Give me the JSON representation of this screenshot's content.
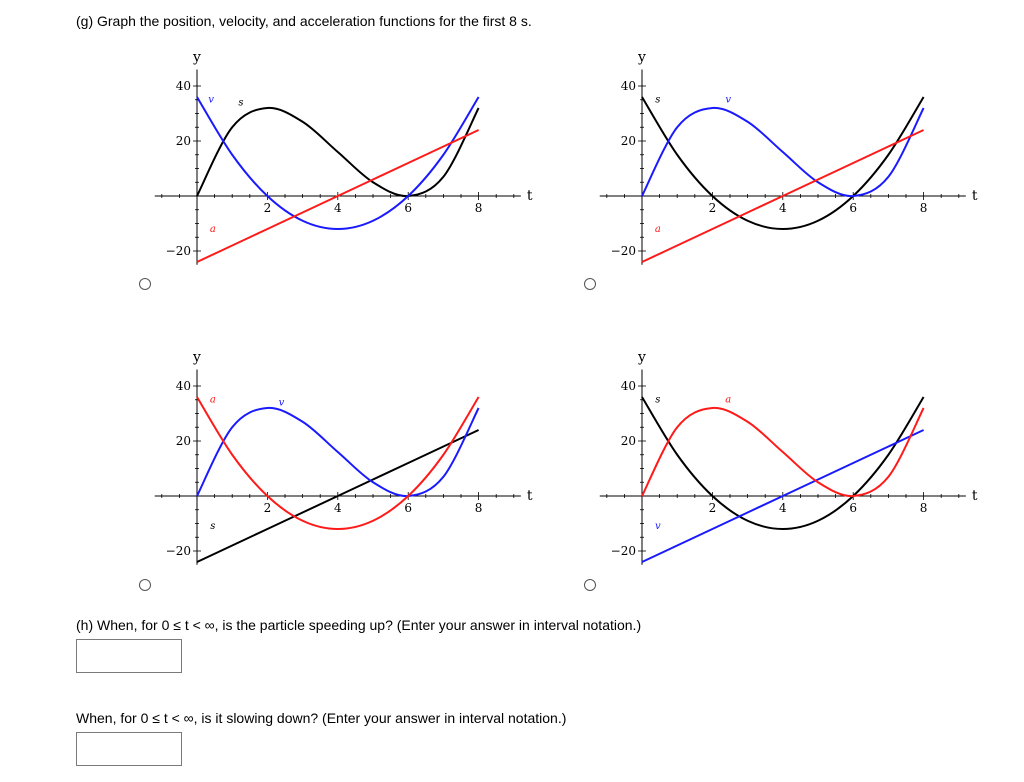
{
  "questions": {
    "g": "(g) Graph the position, velocity, and acceleration functions for the first 8 s.",
    "h": "(h) When, for  0 ≤ t < ∞,  is the particle speeding up? (Enter your answer in interval notation.)",
    "h2": "When, for  0 ≤ t < ∞,  is it slowing down? (Enter your answer in interval notation.)"
  },
  "answers": {
    "speeding_up": "",
    "slowing_down": ""
  },
  "colors": {
    "position": "#000000",
    "velocity": "#1a1aff",
    "acceleration": "#ff1a1a"
  },
  "chart_data": [
    {
      "type": "line",
      "xlabel": "t",
      "ylabel": "y",
      "xlim": [
        -1.2,
        9.2
      ],
      "ylim": [
        -25,
        46
      ],
      "xticks": [
        2,
        4,
        6,
        8
      ],
      "yticks": [
        -20,
        20,
        40
      ],
      "x": [
        0,
        1,
        2,
        3,
        4,
        5,
        6,
        7,
        8
      ],
      "series": [
        {
          "name": "s",
          "color": "#000000",
          "values": [
            0,
            25,
            32,
            27,
            16,
            5,
            0,
            7,
            32
          ]
        },
        {
          "name": "v",
          "color": "#1a1aff",
          "values": [
            36,
            15,
            0,
            -9,
            -12,
            -9,
            0,
            15,
            36
          ]
        },
        {
          "name": "a",
          "color": "#ff1a1a",
          "values": [
            -24,
            -18,
            -12,
            -6,
            0,
            6,
            12,
            18,
            24
          ]
        }
      ]
    },
    {
      "type": "line",
      "xlabel": "t",
      "ylabel": "y",
      "xlim": [
        -1.2,
        9.2
      ],
      "ylim": [
        -25,
        46
      ],
      "xticks": [
        2,
        4,
        6,
        8
      ],
      "yticks": [
        -20,
        20,
        40
      ],
      "x": [
        0,
        1,
        2,
        3,
        4,
        5,
        6,
        7,
        8
      ],
      "series": [
        {
          "name": "s",
          "color": "#000000",
          "values": [
            36,
            15,
            0,
            -9,
            -12,
            -9,
            0,
            15,
            36
          ]
        },
        {
          "name": "v",
          "color": "#1a1aff",
          "values": [
            0,
            25,
            32,
            27,
            16,
            5,
            0,
            7,
            32
          ]
        },
        {
          "name": "a",
          "color": "#ff1a1a",
          "values": [
            -24,
            -18,
            -12,
            -6,
            0,
            6,
            12,
            18,
            24
          ]
        }
      ]
    },
    {
      "type": "line",
      "xlabel": "t",
      "ylabel": "y",
      "xlim": [
        -1.2,
        9.2
      ],
      "ylim": [
        -25,
        46
      ],
      "xticks": [
        2,
        4,
        6,
        8
      ],
      "yticks": [
        -20,
        20,
        40
      ],
      "x": [
        0,
        1,
        2,
        3,
        4,
        5,
        6,
        7,
        8
      ],
      "series": [
        {
          "name": "s",
          "color": "#000000",
          "values": [
            -24,
            -18,
            -12,
            -6,
            0,
            6,
            12,
            18,
            24
          ]
        },
        {
          "name": "v",
          "color": "#1a1aff",
          "values": [
            0,
            25,
            32,
            27,
            16,
            5,
            0,
            7,
            32
          ]
        },
        {
          "name": "a",
          "color": "#ff1a1a",
          "values": [
            36,
            15,
            0,
            -9,
            -12,
            -9,
            0,
            15,
            36
          ]
        }
      ]
    },
    {
      "type": "line",
      "xlabel": "t",
      "ylabel": "y",
      "xlim": [
        -1.2,
        9.2
      ],
      "ylim": [
        -25,
        46
      ],
      "xticks": [
        2,
        4,
        6,
        8
      ],
      "yticks": [
        -20,
        20,
        40
      ],
      "x": [
        0,
        1,
        2,
        3,
        4,
        5,
        6,
        7,
        8
      ],
      "series": [
        {
          "name": "s",
          "color": "#000000",
          "values": [
            36,
            15,
            0,
            -9,
            -12,
            -9,
            0,
            15,
            36
          ]
        },
        {
          "name": "v",
          "color": "#1a1aff",
          "values": [
            -24,
            -18,
            -12,
            -6,
            0,
            6,
            12,
            18,
            24
          ]
        },
        {
          "name": "a",
          "color": "#ff1a1a",
          "values": [
            0,
            25,
            32,
            27,
            16,
            5,
            0,
            7,
            32
          ]
        }
      ]
    }
  ]
}
